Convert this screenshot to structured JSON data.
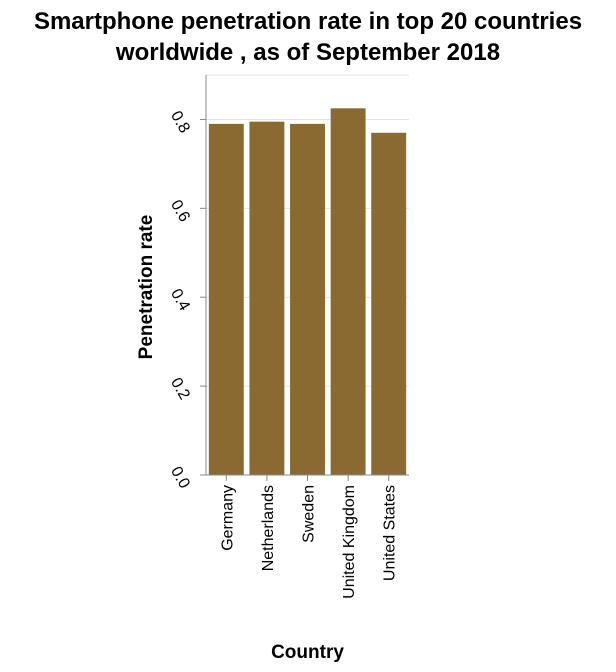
{
  "chart_data": {
    "type": "bar",
    "title": "Smartphone penetration rate in top 20 countries worldwide , as of September 2018",
    "title_lines": [
      "Smartphone penetration rate in top 20 countries",
      "worldwide , as of September 2018"
    ],
    "xlabel": "Country",
    "ylabel": "Penetration rate",
    "categories": [
      "Germany",
      "Netherlands",
      "Sweden",
      "United Kingdom",
      "United States"
    ],
    "values": [
      0.79,
      0.795,
      0.79,
      0.825,
      0.77
    ],
    "ylim": [
      0,
      0.9
    ],
    "yticks": [
      0.0,
      0.2,
      0.4,
      0.6,
      0.8
    ],
    "ytick_labels": [
      "0.0",
      "0.2",
      "0.4",
      "0.6",
      "0.8"
    ],
    "grid": true,
    "bar_color": "#8b6a31",
    "grid_color": "#e3e3e3",
    "axis_color": "#888888"
  }
}
